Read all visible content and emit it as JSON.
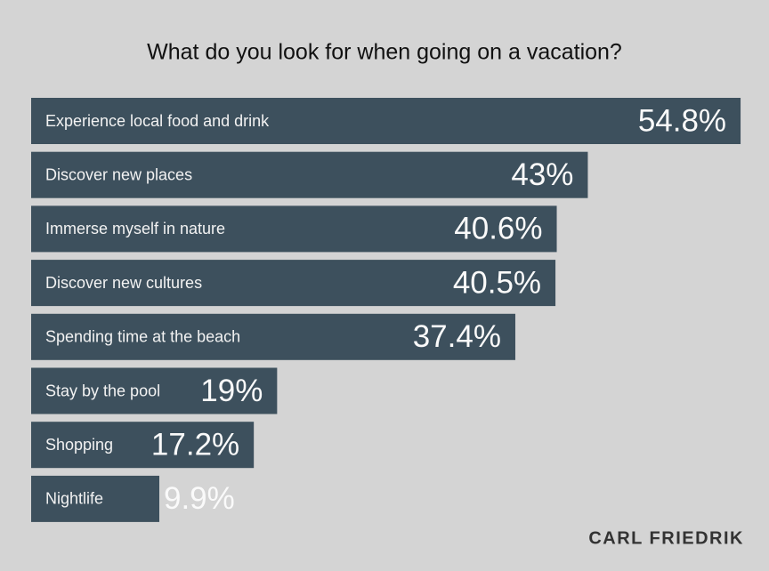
{
  "chart_data": {
    "type": "bar",
    "orientation": "horizontal",
    "title": "What do you look for when going on a vacation?",
    "categories": [
      "Experience local food and drink",
      "Discover new places",
      "Immerse myself in nature",
      "Discover new cultures",
      "Spending time at the beach",
      "Stay by the pool",
      "Shopping",
      "Nightlife"
    ],
    "values": [
      54.8,
      43,
      40.6,
      40.5,
      37.4,
      19,
      17.2,
      9.9
    ],
    "value_labels": [
      "54.8%",
      "43%",
      "40.6%",
      "40.5%",
      "37.4%",
      "19%",
      "17.2%",
      "9.9%"
    ],
    "color": "#3d505d"
  },
  "footer": {
    "brand": "CARL FRIEDRIK"
  }
}
